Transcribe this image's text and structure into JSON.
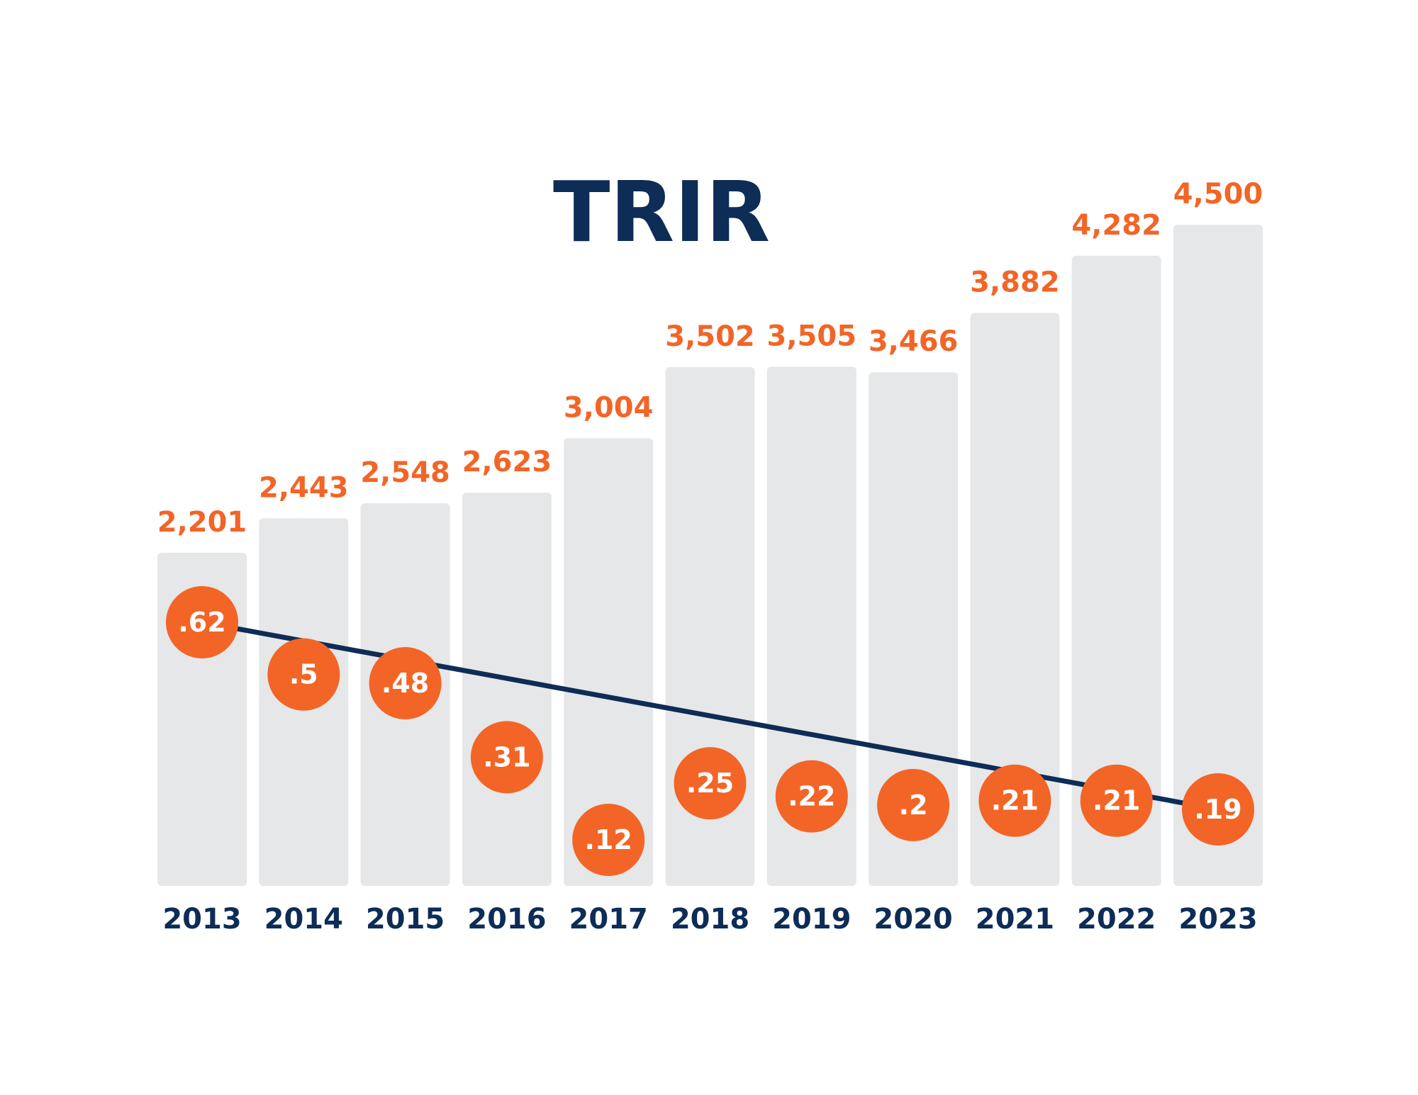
{
  "colors": {
    "bar": "#e6e7e8",
    "accent": "#f26527",
    "navy": "#0d2c56",
    "background": "#ffffff",
    "dot_text": "#ffffff"
  },
  "chart_data": {
    "type": "bar",
    "title": "TRIR",
    "xlabel": "",
    "ylabel": "",
    "grid": false,
    "legend": "none",
    "categories": [
      "2013",
      "2014",
      "2015",
      "2016",
      "2017",
      "2018",
      "2019",
      "2020",
      "2021",
      "2022",
      "2023"
    ],
    "series": [
      {
        "type": "bar",
        "values": [
          2201,
          2443,
          2548,
          2623,
          3004,
          3502,
          3505,
          3466,
          3882,
          4282,
          4500
        ],
        "labels": [
          "2,201",
          "2,443",
          "2,548",
          "2,623",
          "3,004",
          "3,502",
          "3,505",
          "3,466",
          "3,882",
          "4,282",
          "4,500"
        ]
      },
      {
        "type": "point",
        "values": [
          0.62,
          0.5,
          0.48,
          0.31,
          0.12,
          0.25,
          0.22,
          0.2,
          0.21,
          0.21,
          0.19
        ],
        "labels": [
          ".62",
          ".5",
          ".48",
          ".31",
          ".12",
          ".25",
          ".22",
          ".2",
          ".21",
          ".21",
          ".19"
        ]
      }
    ],
    "trendline": {
      "from": 0.62,
      "to": 0.19
    }
  }
}
